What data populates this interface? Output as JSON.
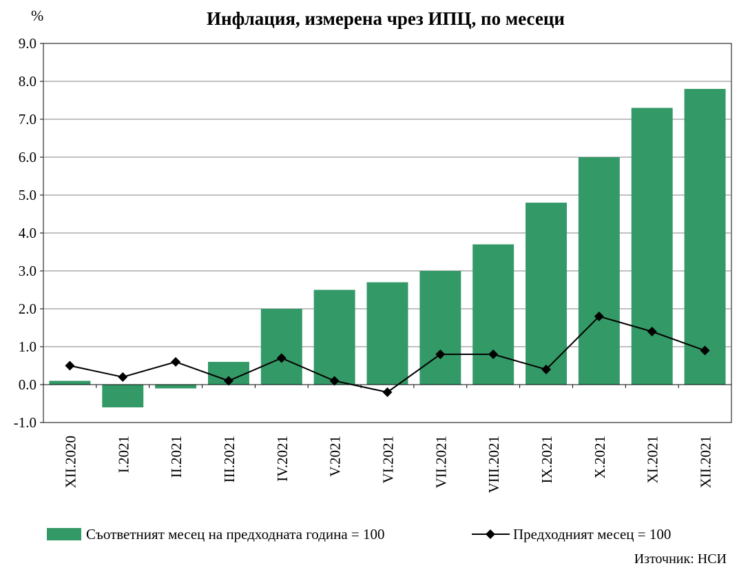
{
  "chart_data": {
    "type": "bar",
    "title": "Инфлация, измерена чрез ИПЦ, по месеци",
    "unit_label": "%",
    "categories": [
      "XII.2020",
      "I.2021",
      "II.2021",
      "III.2021",
      "IV.2021",
      "V.2021",
      "VI.2021",
      "VII.2021",
      "VIII.2021",
      "IX.2021",
      "X.2021",
      "XI.2021",
      "XII.2021"
    ],
    "series": [
      {
        "name": "Съответният месец на предходната година = 100",
        "type": "bar",
        "color": "#339966",
        "values": [
          0.1,
          -0.6,
          -0.1,
          0.6,
          2.0,
          2.5,
          2.7,
          3.0,
          3.7,
          4.8,
          6.0,
          7.3,
          7.8
        ]
      },
      {
        "name": "Предходният месец = 100",
        "type": "line",
        "marker": "diamond",
        "color": "#000000",
        "values": [
          0.5,
          0.2,
          0.6,
          0.1,
          0.7,
          0.1,
          -0.2,
          0.8,
          0.8,
          0.4,
          1.8,
          1.4,
          0.9
        ]
      }
    ],
    "ylim": [
      -1.0,
      9.0
    ],
    "yticks": [
      "-1.0",
      "0.0",
      "1.0",
      "2.0",
      "3.0",
      "4.0",
      "5.0",
      "6.0",
      "7.0",
      "8.0",
      "9.0"
    ],
    "grid": true,
    "legend_position": "bottom"
  },
  "source": "Източник: НСИ"
}
